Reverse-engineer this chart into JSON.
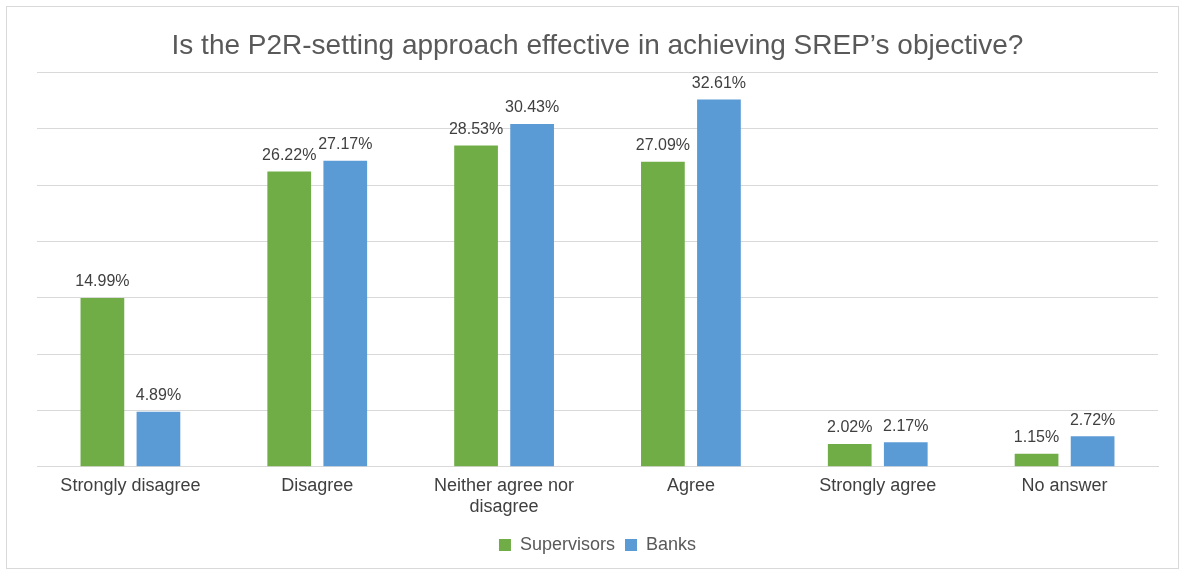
{
  "chart_data": {
    "type": "bar",
    "title": "Is the P2R-setting approach effective in achieving SREP’s objective?",
    "categories": [
      "Strongly disagree",
      "Disagree",
      "Neither agree nor disagree",
      "Agree",
      "Strongly agree",
      "No answer"
    ],
    "series": [
      {
        "name": "Supervisors",
        "color": "#70ad47",
        "values": [
          14.99,
          26.22,
          28.53,
          27.09,
          2.02,
          1.15
        ],
        "value_labels": [
          "14.99%",
          "26.22%",
          "28.53%",
          "27.09%",
          "2.02%",
          "1.15%"
        ]
      },
      {
        "name": "Banks",
        "color": "#5b9bd5",
        "values": [
          4.89,
          27.17,
          30.43,
          32.61,
          2.17,
          2.72
        ],
        "value_labels": [
          "4.89%",
          "27.17%",
          "30.43%",
          "32.61%",
          "2.17%",
          "2.72%"
        ]
      }
    ],
    "ylim": [
      0,
      35
    ],
    "yticks": [
      {
        "value": 0,
        "label": null
      },
      {
        "value": 5,
        "label": null
      },
      {
        "value": 10,
        "label": null
      },
      {
        "value": 15,
        "label": null
      },
      {
        "value": 20,
        "label": null
      },
      {
        "value": 25,
        "label": null
      },
      {
        "value": 30,
        "label": null
      },
      {
        "value": 35,
        "label": null
      }
    ],
    "tick_labels": "x",
    "grid": "y",
    "legend": "bottom"
  }
}
